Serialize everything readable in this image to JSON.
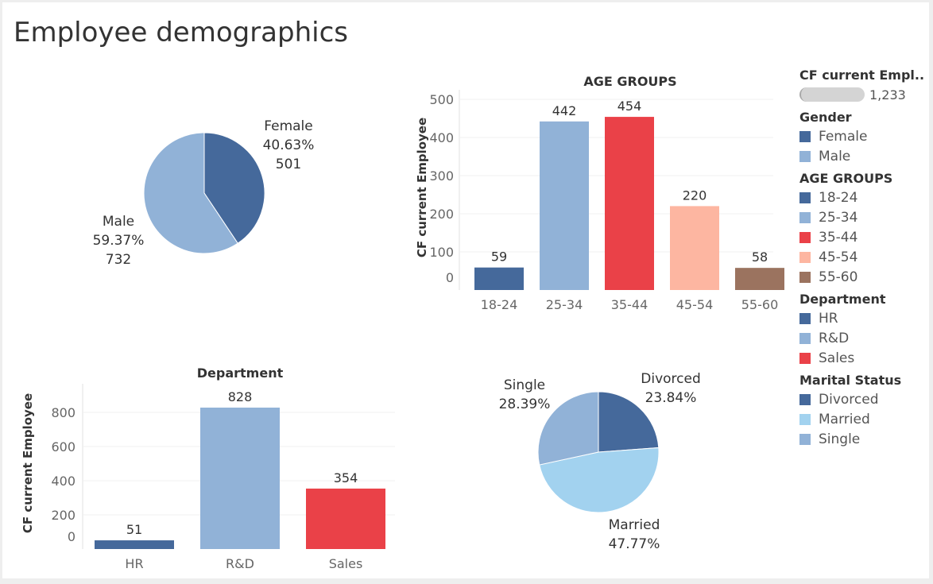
{
  "dashboard_title": "Employee demographics",
  "colors": {
    "dark_blue": "#45699b",
    "light_blue": "#91b2d7",
    "red": "#ea4148",
    "peach": "#fdb6a1",
    "brown": "#9b735f",
    "sky": "#a2d2ef"
  },
  "legend": {
    "size_title": "CF current Empl..",
    "size_value": "1,233",
    "gender": {
      "title": "Gender",
      "items": [
        {
          "label": "Female",
          "color": "#45699b"
        },
        {
          "label": "Male",
          "color": "#91b2d7"
        }
      ]
    },
    "age_groups": {
      "title": "AGE GROUPS",
      "items": [
        {
          "label": "18-24",
          "color": "#45699b"
        },
        {
          "label": "25-34",
          "color": "#91b2d7"
        },
        {
          "label": "35-44",
          "color": "#ea4148"
        },
        {
          "label": "45-54",
          "color": "#fdb6a1"
        },
        {
          "label": "55-60",
          "color": "#9b735f"
        }
      ]
    },
    "department": {
      "title": "Department",
      "items": [
        {
          "label": "HR",
          "color": "#45699b"
        },
        {
          "label": "R&D",
          "color": "#91b2d7"
        },
        {
          "label": "Sales",
          "color": "#ea4148"
        }
      ]
    },
    "marital_status": {
      "title": "Marital Status",
      "items": [
        {
          "label": "Divorced",
          "color": "#45699b"
        },
        {
          "label": "Married",
          "color": "#a2d2ef"
        },
        {
          "label": "Single",
          "color": "#91b2d7"
        }
      ]
    }
  },
  "chart_data": [
    {
      "type": "pie",
      "title": "",
      "slices": [
        {
          "label": "Female",
          "percent_label": "40.63%",
          "value": 501,
          "value_label": "501",
          "color": "#45699b"
        },
        {
          "label": "Male",
          "percent_label": "59.37%",
          "value": 732,
          "value_label": "732",
          "color": "#91b2d7"
        }
      ]
    },
    {
      "type": "bar",
      "title": "AGE GROUPS",
      "xlabel": "",
      "ylabel": "CF current Employee",
      "categories": [
        "18-24",
        "25-34",
        "35-44",
        "45-54",
        "55-60"
      ],
      "values": [
        59,
        442,
        454,
        220,
        58
      ],
      "value_labels": [
        "59",
        "442",
        "454",
        "220",
        "58"
      ],
      "colors": [
        "#45699b",
        "#91b2d7",
        "#ea4148",
        "#fdb6a1",
        "#9b735f"
      ],
      "yticks": [
        0,
        100,
        200,
        300,
        400,
        500
      ],
      "ytick_labels": [
        "0",
        "100",
        "200",
        "300",
        "400",
        "500"
      ],
      "ylim": [
        0,
        500
      ],
      "grid": true
    },
    {
      "type": "bar",
      "title": "Department",
      "xlabel": "",
      "ylabel": "CF current Employee",
      "categories": [
        "HR",
        "R&D",
        "Sales"
      ],
      "values": [
        51,
        828,
        354
      ],
      "value_labels": [
        "51",
        "828",
        "354"
      ],
      "colors": [
        "#45699b",
        "#91b2d7",
        "#ea4148"
      ],
      "yticks": [
        0,
        200,
        400,
        600,
        800
      ],
      "ytick_labels": [
        "0",
        "200",
        "400",
        "600",
        "800"
      ],
      "ylim": [
        0,
        828
      ],
      "grid": true
    },
    {
      "type": "pie",
      "title": "",
      "slices": [
        {
          "label": "Divorced",
          "percent_label": "23.84%",
          "percent": 23.84,
          "color": "#45699b"
        },
        {
          "label": "Married",
          "percent_label": "47.77%",
          "percent": 47.77,
          "color": "#a2d2ef"
        },
        {
          "label": "Single",
          "percent_label": "28.39%",
          "percent": 28.39,
          "color": "#91b2d7"
        }
      ]
    }
  ]
}
